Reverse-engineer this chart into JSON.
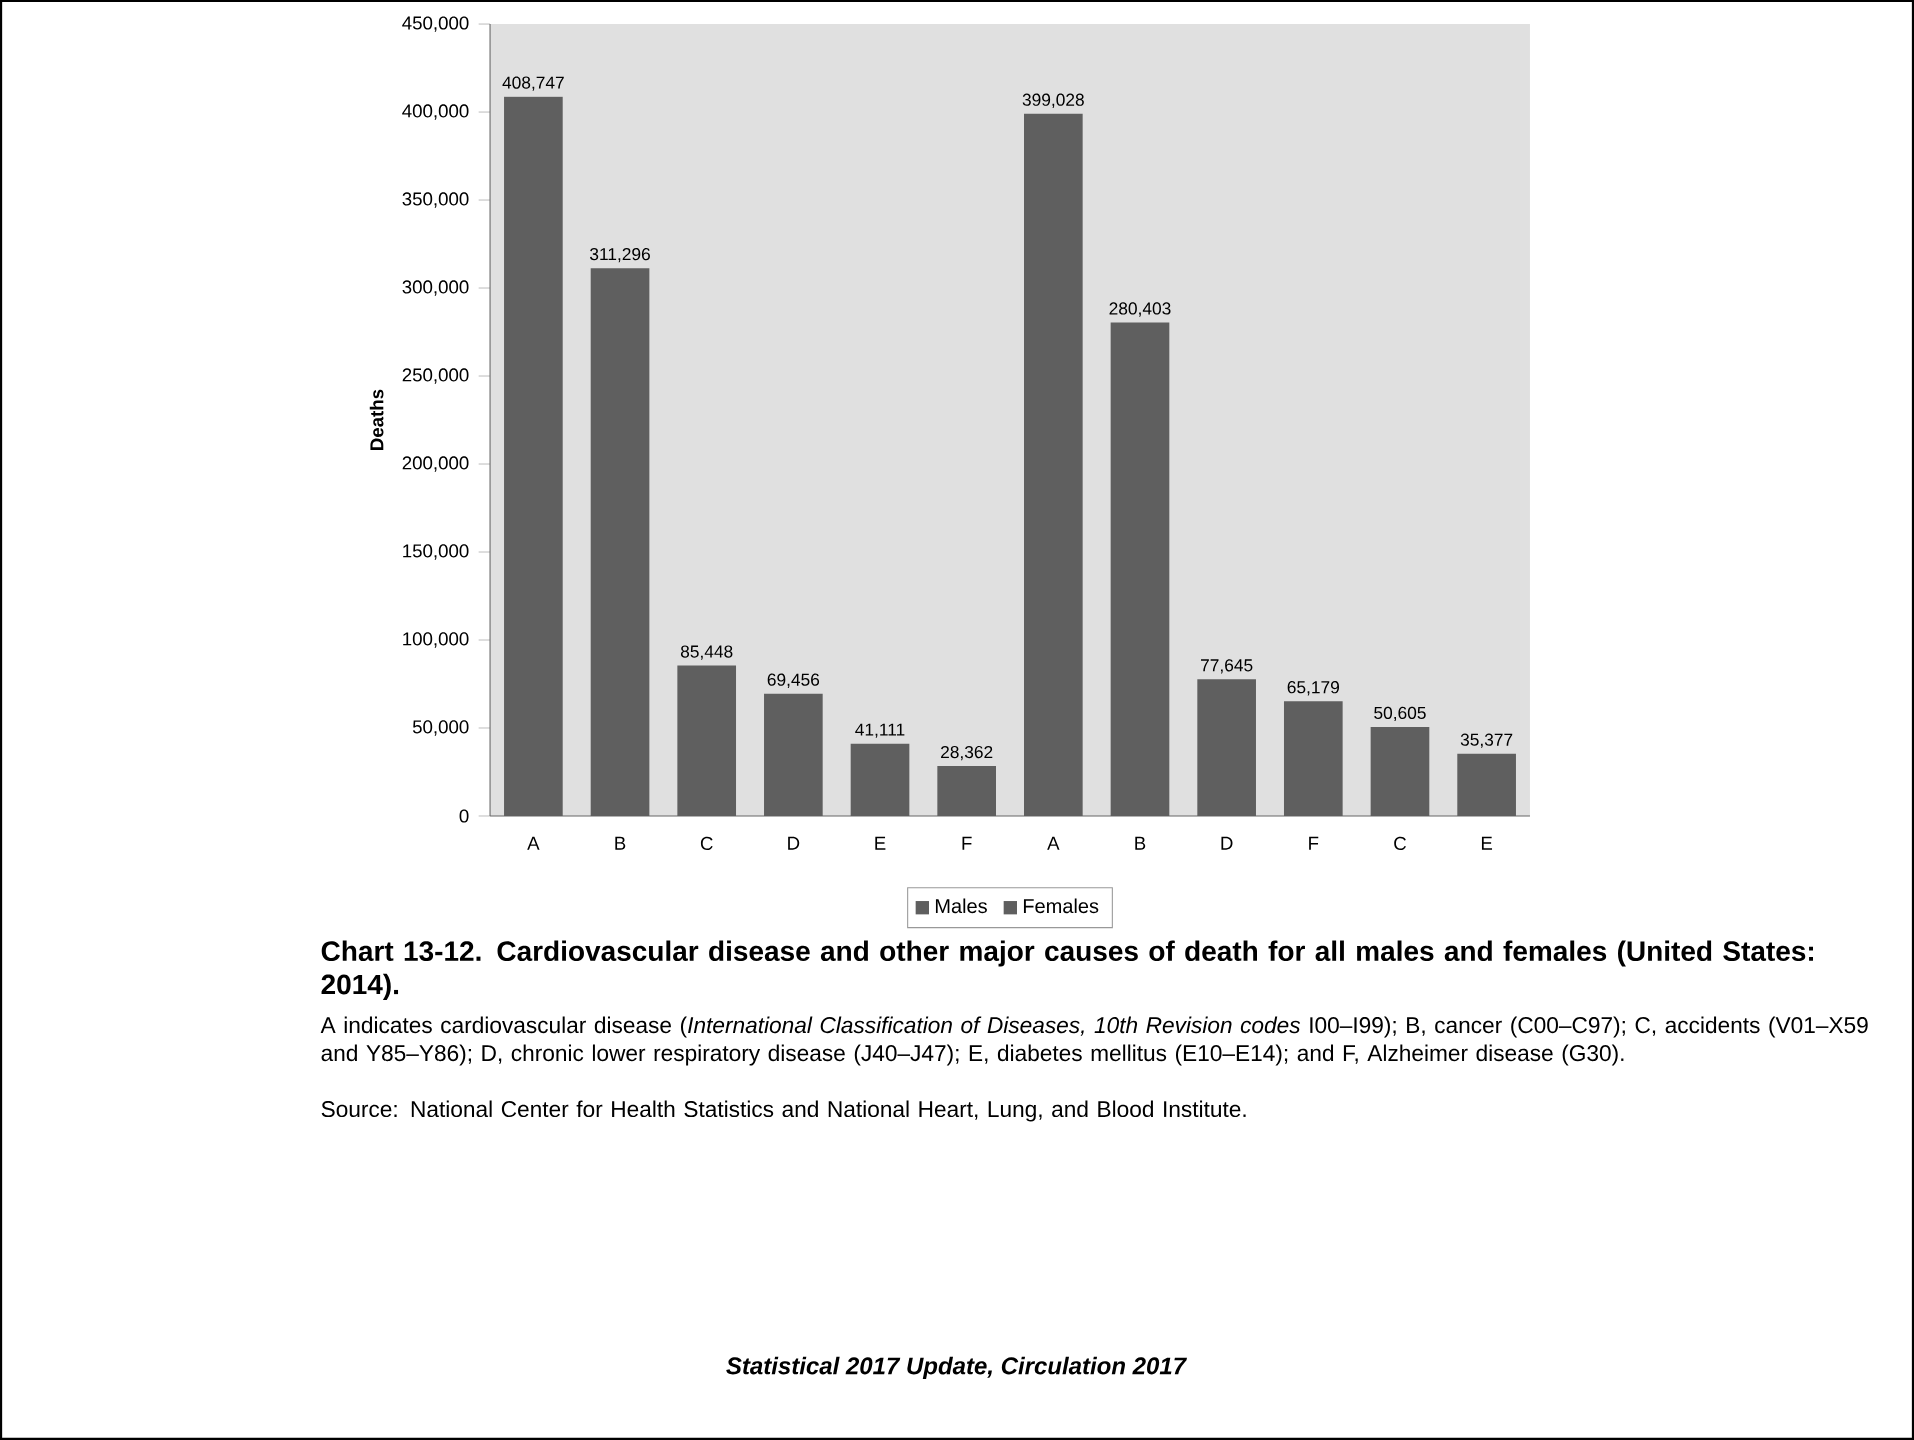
{
  "chart_data": {
    "type": "bar",
    "title": "Chart 13-12. Cardiovascular disease and other major causes of death for all males and females (United States: 2014).",
    "ylabel": "Deaths",
    "categories": [
      "A",
      "B",
      "C",
      "D",
      "E",
      "F",
      "A",
      "B",
      "D",
      "F",
      "C",
      "E"
    ],
    "series": [
      {
        "name": "Males",
        "color": "#5f5f5f",
        "values": [
          408747,
          311296,
          85448,
          69456,
          41111,
          28362,
          null,
          null,
          null,
          null,
          null,
          null
        ],
        "value_labels": [
          "408,747",
          "311,296",
          "85,448",
          "69,456",
          "41,111",
          "28,362",
          null,
          null,
          null,
          null,
          null,
          null
        ]
      },
      {
        "name": "Females",
        "color": "#5f5f5f",
        "values": [
          null,
          null,
          null,
          null,
          null,
          null,
          399028,
          280403,
          77645,
          65179,
          50605,
          35377
        ],
        "value_labels": [
          null,
          null,
          null,
          null,
          null,
          null,
          "399,028",
          "280,403",
          "77,645",
          "65,179",
          "50,605",
          "35,377"
        ]
      }
    ],
    "ylim": [
      0,
      450000
    ],
    "yticks": [
      {
        "value": 0,
        "label": "0"
      },
      {
        "value": 50000,
        "label": "50,000"
      },
      {
        "value": 100000,
        "label": "100,000"
      },
      {
        "value": 150000,
        "label": "150,000"
      },
      {
        "value": 200000,
        "label": "200,000"
      },
      {
        "value": 250000,
        "label": "250,000"
      },
      {
        "value": 300000,
        "label": "300,000"
      },
      {
        "value": 350000,
        "label": "350,000"
      },
      {
        "value": 400000,
        "label": "400,000"
      },
      {
        "value": 450000,
        "label": "450,000"
      }
    ],
    "grid": false,
    "legend": "bottom",
    "annotations": [
      "A indicates cardiovascular disease (*International Classification of Diseases, 10th Revision codes* I00–I99); B, cancer (C00–C97); C, accidents (V01–X59 and Y85–Y86); D, chronic lower respiratory disease (J40–J47); E, diabetes mellitus (E10–E14); and F, Alzheimer disease (G30).",
      "Source: National Center for Health Statistics and National Heart, Lung, and Blood Institute.",
      "Statistical 2017 Update, Circulation 2017"
    ]
  }
}
